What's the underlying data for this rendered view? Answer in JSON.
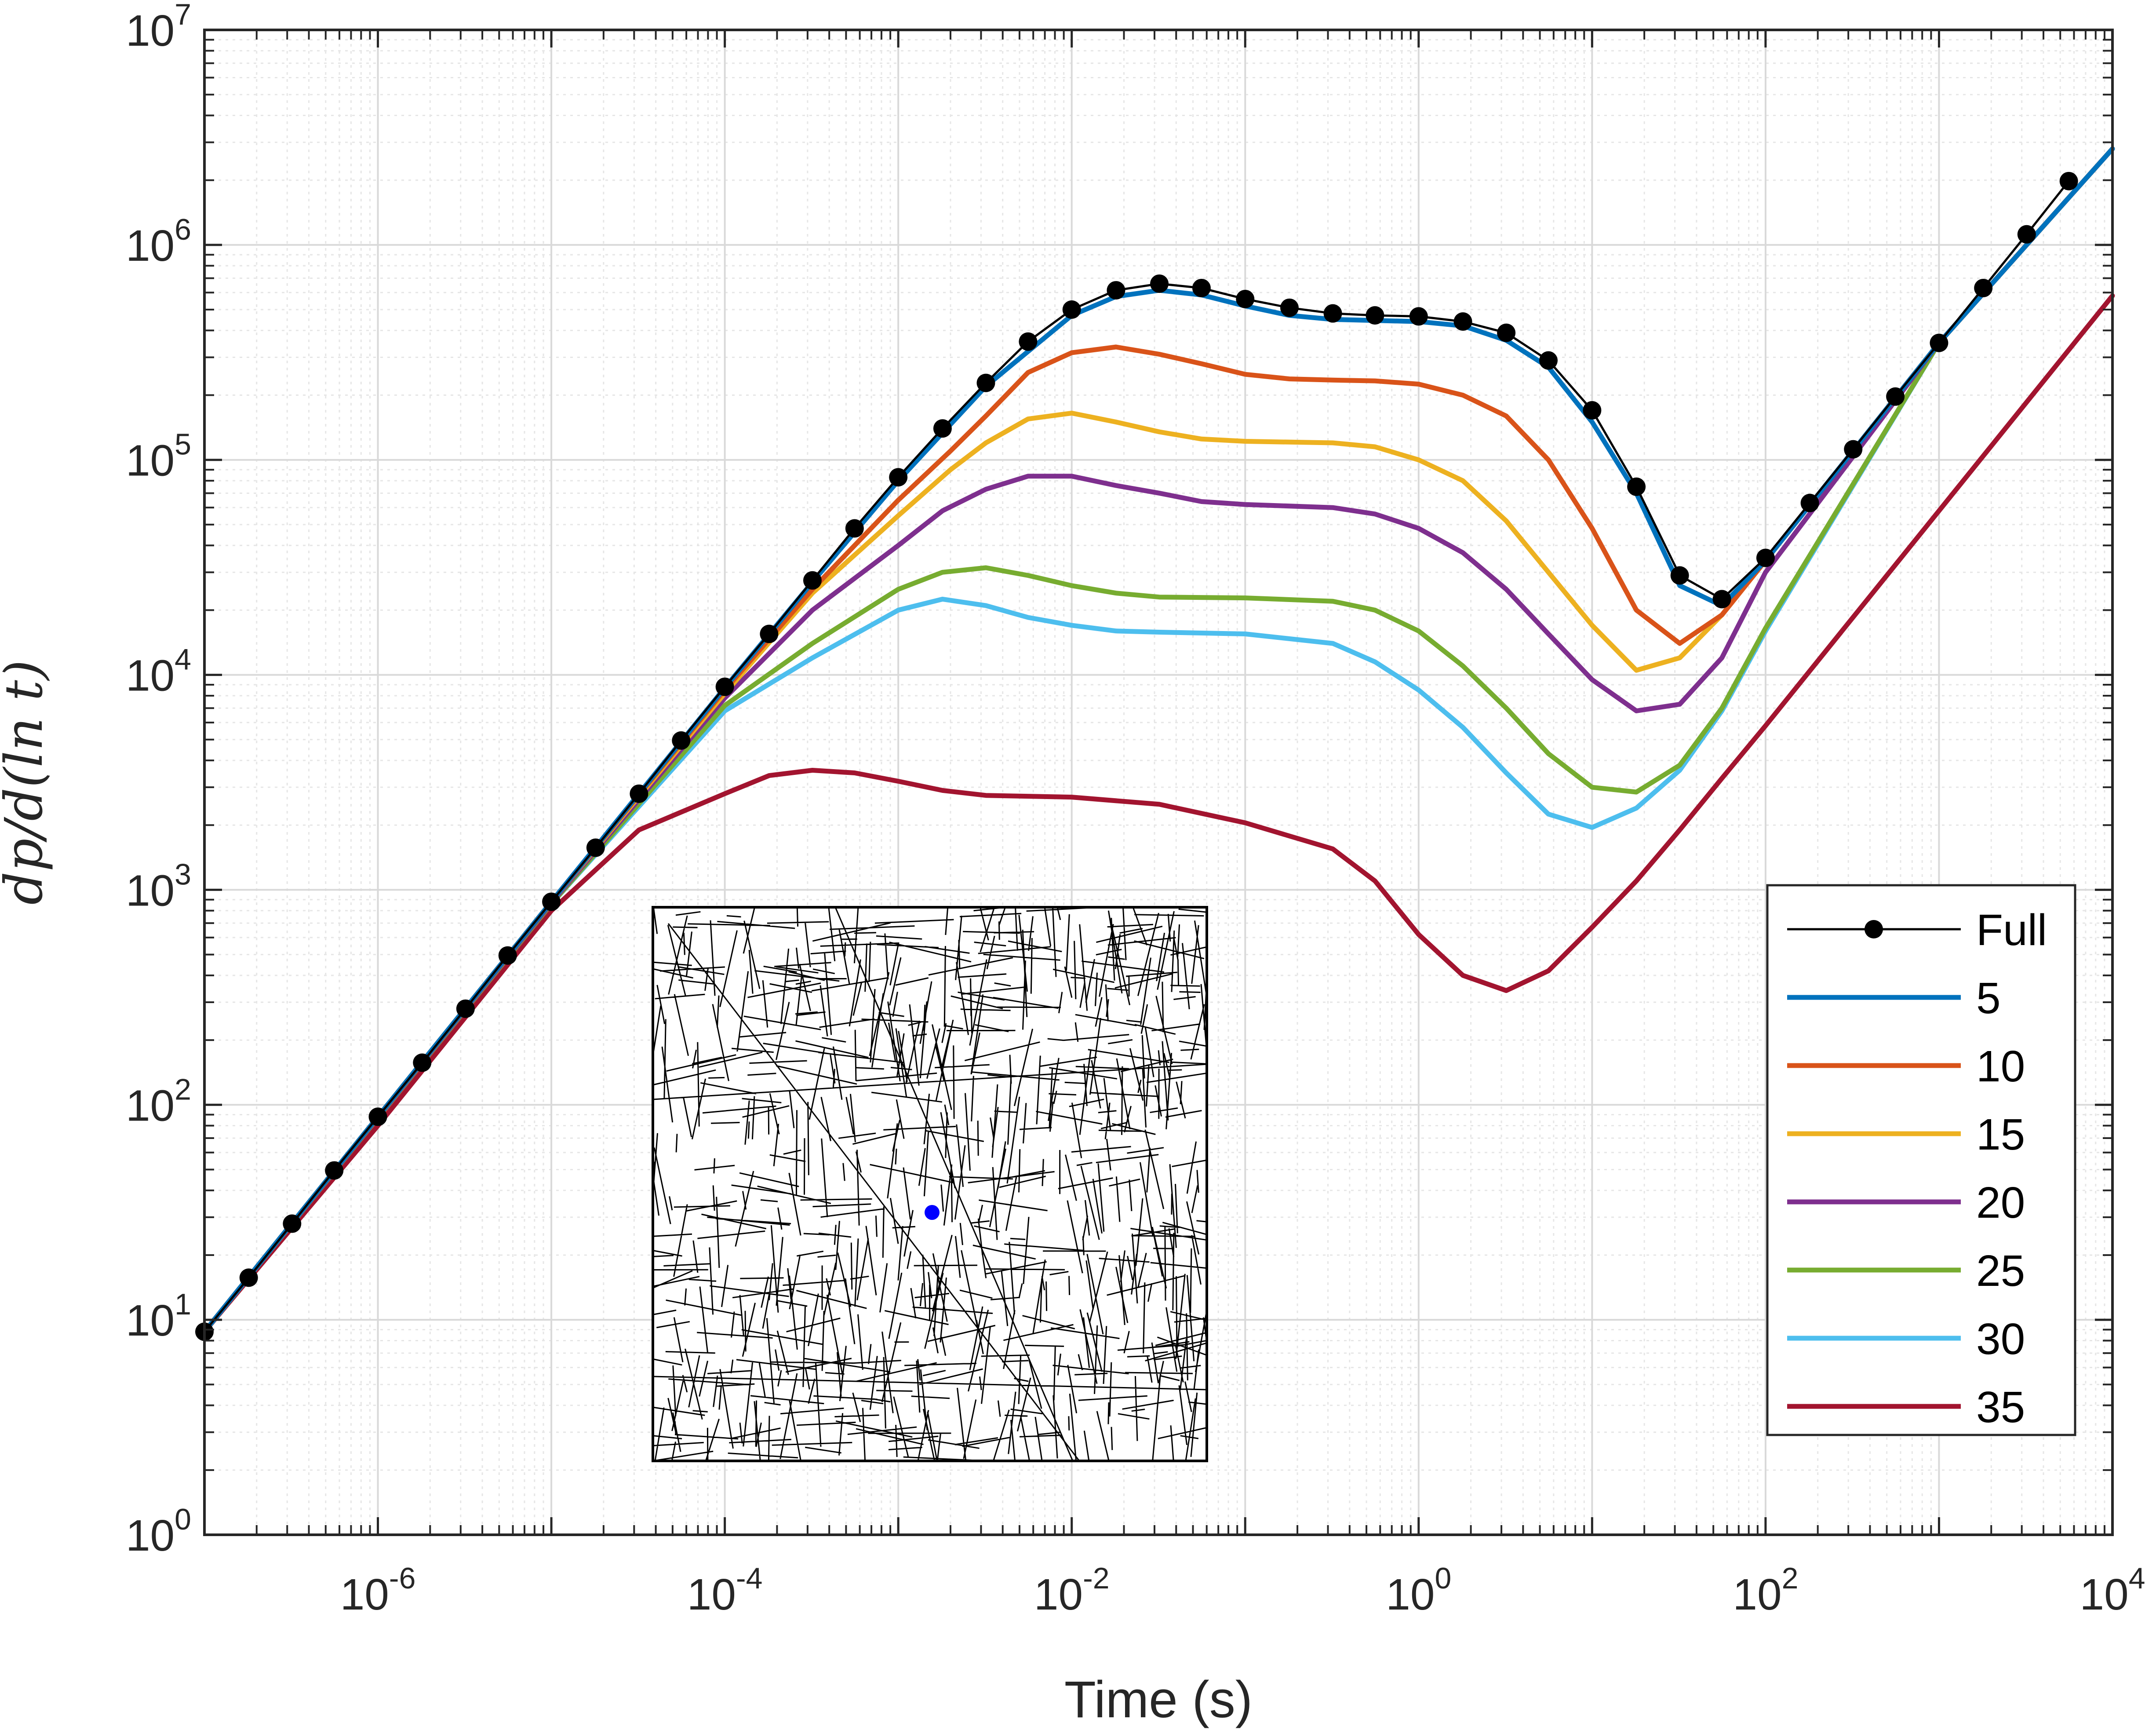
{
  "chart_data": {
    "type": "line",
    "xlabel": "Time (s)",
    "ylabel": "dp/d(ln t)",
    "xscale": "log",
    "yscale": "log",
    "xlim": [
      1e-07,
      10000.0
    ],
    "ylim": [
      1,
      10000000.0
    ],
    "xticks": [
      {
        "base": "10",
        "exp": "-6",
        "value": 1e-06
      },
      {
        "base": "10",
        "exp": "-4",
        "value": 0.0001
      },
      {
        "base": "10",
        "exp": "-2",
        "value": 0.01
      },
      {
        "base": "10",
        "exp": "0",
        "value": 1
      },
      {
        "base": "10",
        "exp": "2",
        "value": 100.0
      },
      {
        "base": "10",
        "exp": "4",
        "value": 10000.0
      }
    ],
    "yticks": [
      {
        "base": "10",
        "exp": "0",
        "value": 1
      },
      {
        "base": "10",
        "exp": "1",
        "value": 10
      },
      {
        "base": "10",
        "exp": "2",
        "value": 100
      },
      {
        "base": "10",
        "exp": "3",
        "value": 1000
      },
      {
        "base": "10",
        "exp": "4",
        "value": 10000
      },
      {
        "base": "10",
        "exp": "5",
        "value": 100000
      },
      {
        "base": "10",
        "exp": "6",
        "value": 1000000
      },
      {
        "base": "10",
        "exp": "7",
        "value": 10000000
      }
    ],
    "grid": true,
    "minor_grid": true,
    "legend_position": "bottom-right",
    "series": [
      {
        "name": "Full",
        "color": "#000000",
        "marker": "circle",
        "points": [
          [
            1e-07,
            8.8
          ],
          [
            1.8e-07,
            15.7
          ],
          [
            3.2e-07,
            28
          ],
          [
            5.6e-07,
            49.5
          ],
          [
            1e-06,
            88
          ],
          [
            1.8e-06,
            157
          ],
          [
            3.2e-06,
            280
          ],
          [
            5.6e-06,
            495
          ],
          [
            1e-05,
            880
          ],
          [
            1.8e-05,
            1570
          ],
          [
            3.2e-05,
            2800
          ],
          [
            5.6e-05,
            4950
          ],
          [
            0.0001,
            8800
          ],
          [
            0.00018,
            15500
          ],
          [
            0.00032,
            27500
          ],
          [
            0.00056,
            48000
          ],
          [
            0.001,
            83000
          ],
          [
            0.0018,
            140000
          ],
          [
            0.0032,
            228000
          ],
          [
            0.0056,
            355000
          ],
          [
            0.01,
            500000
          ],
          [
            0.018,
            615000
          ],
          [
            0.032,
            660000
          ],
          [
            0.056,
            630000
          ],
          [
            0.1,
            560000
          ],
          [
            0.18,
            510000
          ],
          [
            0.32,
            480000
          ],
          [
            0.56,
            470000
          ],
          [
            1,
            465000
          ],
          [
            1.8,
            440000
          ],
          [
            3.2,
            390000
          ],
          [
            5.6,
            290000
          ],
          [
            10,
            170000
          ],
          [
            18,
            75000
          ],
          [
            32,
            29000
          ],
          [
            56,
            22500
          ],
          [
            100,
            35000
          ],
          [
            180,
            63000
          ],
          [
            320,
            112000
          ],
          [
            560,
            197000
          ],
          [
            1000,
            350000
          ],
          [
            1800,
            630000
          ],
          [
            3200,
            1120000
          ],
          [
            5600,
            1980000
          ]
        ]
      },
      {
        "name": "5",
        "color": "#0072BD",
        "marker": "none",
        "points": [
          [
            1e-07,
            8.8
          ],
          [
            1e-05,
            880
          ],
          [
            0.0001,
            8700
          ],
          [
            0.00032,
            27000
          ],
          [
            0.001,
            80000
          ],
          [
            0.0032,
            220000
          ],
          [
            0.01,
            470000
          ],
          [
            0.018,
            575000
          ],
          [
            0.032,
            615000
          ],
          [
            0.056,
            585000
          ],
          [
            0.1,
            520000
          ],
          [
            0.18,
            470000
          ],
          [
            0.32,
            450000
          ],
          [
            1,
            440000
          ],
          [
            1.8,
            420000
          ],
          [
            3.2,
            360000
          ],
          [
            5.6,
            270000
          ],
          [
            10,
            150000
          ],
          [
            18,
            70000
          ],
          [
            32,
            26000
          ],
          [
            56,
            21000
          ],
          [
            100,
            34000
          ],
          [
            1000,
            350000
          ],
          [
            10000,
            2800000
          ]
        ]
      },
      {
        "name": "10",
        "color": "#D95319",
        "marker": "none",
        "points": [
          [
            1e-07,
            8.8
          ],
          [
            1e-05,
            880
          ],
          [
            0.0001,
            8500
          ],
          [
            0.00032,
            25000
          ],
          [
            0.001,
            65000
          ],
          [
            0.002,
            110000
          ],
          [
            0.0032,
            160000
          ],
          [
            0.0056,
            255000
          ],
          [
            0.01,
            315000
          ],
          [
            0.018,
            335000
          ],
          [
            0.032,
            310000
          ],
          [
            0.056,
            280000
          ],
          [
            0.1,
            250000
          ],
          [
            0.18,
            238000
          ],
          [
            0.32,
            235000
          ],
          [
            0.56,
            233000
          ],
          [
            1,
            225000
          ],
          [
            1.8,
            200000
          ],
          [
            3.2,
            160000
          ],
          [
            5.6,
            100000
          ],
          [
            10,
            48000
          ],
          [
            18,
            20000
          ],
          [
            32,
            14000
          ],
          [
            56,
            19000
          ],
          [
            100,
            34000
          ],
          [
            1000,
            350000
          ],
          [
            10000,
            2800000
          ]
        ]
      },
      {
        "name": "15",
        "color": "#EDB120",
        "marker": "none",
        "points": [
          [
            1e-07,
            8.8
          ],
          [
            1e-05,
            880
          ],
          [
            0.0001,
            8200
          ],
          [
            0.00032,
            24000
          ],
          [
            0.001,
            55000
          ],
          [
            0.002,
            90000
          ],
          [
            0.0032,
            120000
          ],
          [
            0.0056,
            155000
          ],
          [
            0.01,
            165000
          ],
          [
            0.018,
            150000
          ],
          [
            0.032,
            135000
          ],
          [
            0.056,
            125000
          ],
          [
            0.1,
            122000
          ],
          [
            0.32,
            120000
          ],
          [
            0.56,
            115000
          ],
          [
            1,
            100000
          ],
          [
            1.8,
            80000
          ],
          [
            3.2,
            52000
          ],
          [
            5.6,
            30000
          ],
          [
            10,
            17000
          ],
          [
            18,
            10500
          ],
          [
            32,
            12000
          ],
          [
            56,
            19000
          ],
          [
            100,
            34000
          ],
          [
            1000,
            350000
          ],
          [
            10000,
            2800000
          ]
        ]
      },
      {
        "name": "20",
        "color": "#7E2F8E",
        "marker": "none",
        "points": [
          [
            1e-07,
            8.8
          ],
          [
            1e-05,
            870
          ],
          [
            0.0001,
            7800
          ],
          [
            0.00032,
            20000
          ],
          [
            0.001,
            40000
          ],
          [
            0.0018,
            58000
          ],
          [
            0.0032,
            73000
          ],
          [
            0.0056,
            84000
          ],
          [
            0.01,
            84000
          ],
          [
            0.018,
            76000
          ],
          [
            0.032,
            70000
          ],
          [
            0.056,
            64000
          ],
          [
            0.1,
            62000
          ],
          [
            0.32,
            60000
          ],
          [
            0.56,
            56000
          ],
          [
            1,
            48000
          ],
          [
            1.8,
            37000
          ],
          [
            3.2,
            25000
          ],
          [
            5.6,
            15500
          ],
          [
            10,
            9500
          ],
          [
            18,
            6800
          ],
          [
            32,
            7300
          ],
          [
            56,
            12000
          ],
          [
            100,
            30000
          ],
          [
            1000,
            350000
          ],
          [
            10000,
            2800000
          ]
        ]
      },
      {
        "name": "25",
        "color": "#77AC30",
        "marker": "none",
        "points": [
          [
            1e-07,
            8.8
          ],
          [
            1e-05,
            860
          ],
          [
            0.0001,
            7200
          ],
          [
            0.00032,
            14000
          ],
          [
            0.001,
            25000
          ],
          [
            0.0018,
            30000
          ],
          [
            0.0032,
            31500
          ],
          [
            0.0056,
            29000
          ],
          [
            0.01,
            26000
          ],
          [
            0.018,
            24000
          ],
          [
            0.032,
            23000
          ],
          [
            0.1,
            22800
          ],
          [
            0.32,
            22000
          ],
          [
            0.56,
            20000
          ],
          [
            1,
            16000
          ],
          [
            1.8,
            11000
          ],
          [
            3.2,
            7000
          ],
          [
            5.6,
            4300
          ],
          [
            10,
            3000
          ],
          [
            18,
            2850
          ],
          [
            32,
            3800
          ],
          [
            56,
            7000
          ],
          [
            100,
            16500
          ],
          [
            1000,
            350000
          ],
          [
            10000,
            2800000
          ]
        ]
      },
      {
        "name": "30",
        "color": "#4DBEEE",
        "marker": "none",
        "points": [
          [
            1e-07,
            8.8
          ],
          [
            1e-05,
            860
          ],
          [
            0.0001,
            6800
          ],
          [
            0.00032,
            12000
          ],
          [
            0.001,
            20000
          ],
          [
            0.0018,
            22500
          ],
          [
            0.0032,
            21000
          ],
          [
            0.0056,
            18500
          ],
          [
            0.01,
            17000
          ],
          [
            0.018,
            16000
          ],
          [
            0.032,
            15800
          ],
          [
            0.1,
            15500
          ],
          [
            0.32,
            14000
          ],
          [
            0.56,
            11500
          ],
          [
            1,
            8500
          ],
          [
            1.8,
            5700
          ],
          [
            3.2,
            3500
          ],
          [
            5.6,
            2250
          ],
          [
            10,
            1950
          ],
          [
            18,
            2400
          ],
          [
            32,
            3600
          ],
          [
            56,
            6800
          ],
          [
            100,
            16000
          ],
          [
            1000,
            350000
          ],
          [
            10000,
            2800000
          ]
        ]
      },
      {
        "name": "35",
        "color": "#A2142F",
        "marker": "none",
        "points": [
          [
            1e-07,
            8.8
          ],
          [
            1e-06,
            80
          ],
          [
            1e-05,
            800
          ],
          [
            3.2e-05,
            1900
          ],
          [
            0.0001,
            2800
          ],
          [
            0.00018,
            3400
          ],
          [
            0.00032,
            3600
          ],
          [
            0.00056,
            3500
          ],
          [
            0.001,
            3200
          ],
          [
            0.0018,
            2900
          ],
          [
            0.0032,
            2750
          ],
          [
            0.01,
            2700
          ],
          [
            0.032,
            2500
          ],
          [
            0.1,
            2050
          ],
          [
            0.32,
            1550
          ],
          [
            0.56,
            1100
          ],
          [
            1,
            620
          ],
          [
            1.8,
            400
          ],
          [
            3.2,
            340
          ],
          [
            5.6,
            420
          ],
          [
            10,
            670
          ],
          [
            18,
            1100
          ],
          [
            32,
            1900
          ],
          [
            56,
            3300
          ],
          [
            100,
            5800
          ],
          [
            1000,
            58000
          ],
          [
            10000,
            580000
          ]
        ]
      }
    ]
  },
  "legend": {
    "items": [
      "Full",
      "5",
      "10",
      "15",
      "20",
      "25",
      "30",
      "35"
    ]
  },
  "inset": {
    "type": "fracture-network-image",
    "marker_color": "#0000FF"
  }
}
